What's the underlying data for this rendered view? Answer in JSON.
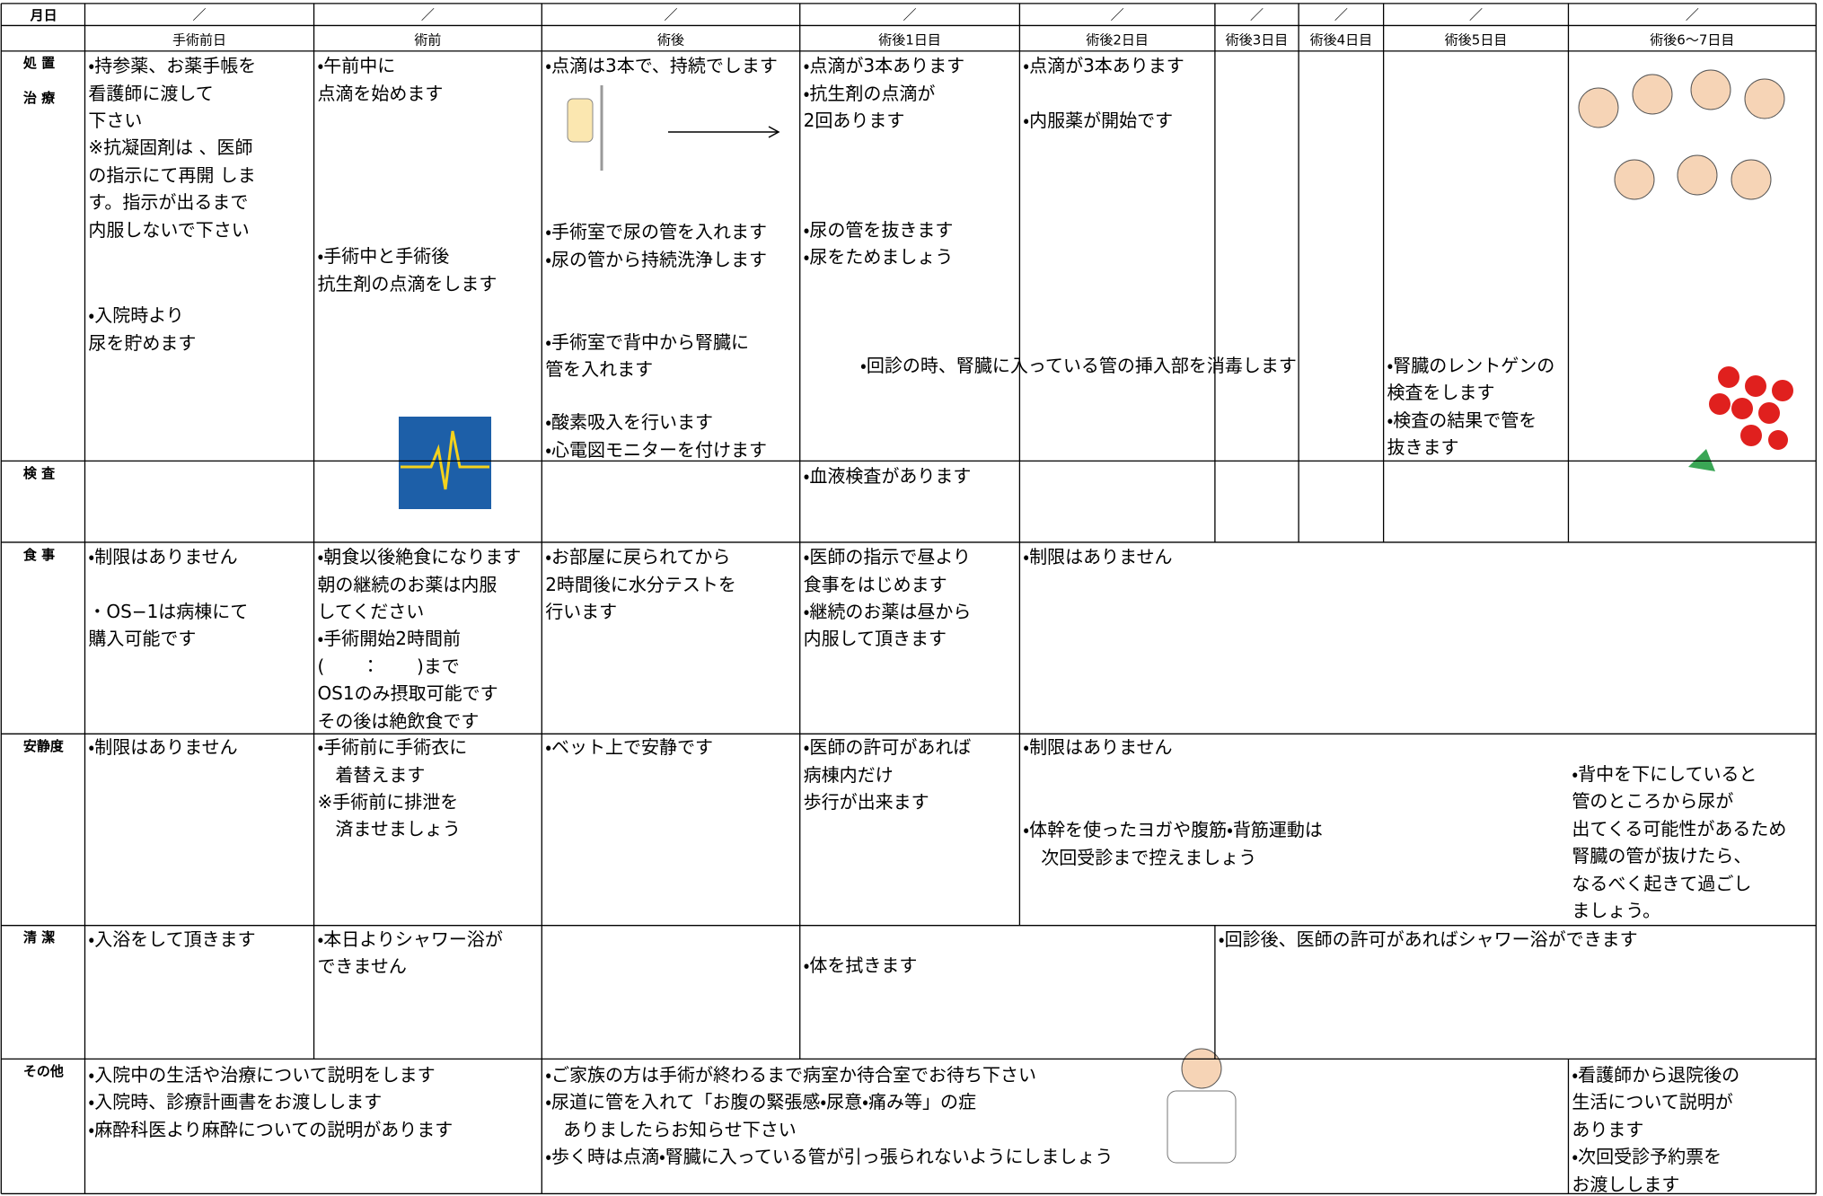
{
  "header": {
    "date_label": "月日",
    "slashes": [
      "／",
      "／",
      "／",
      "／",
      "／",
      "／",
      "／",
      "／",
      "／"
    ],
    "columns": [
      "手術前日",
      "術前",
      "術後",
      "術後1日目",
      "術後2日目",
      "術後3日目",
      "術後4日目",
      "術後5日目",
      "術後6〜7日目"
    ]
  },
  "rows": [
    {
      "label": [
        "処 置",
        "治 療"
      ],
      "blocks": [
        {
          "lines": [
            "・持参薬、お薬手帳を",
            "看護師に渡して",
            "下さい",
            "※抗凝固剤は 、医師",
            "の指示にて再開 しま",
            "す。指示が出るまで",
            "内服しないで下さい"
          ]
        },
        {
          "lines": [
            "・入院時より",
            "尿を貯めます"
          ]
        },
        {
          "lines": [
            "・午前中に",
            "点滴を始めます"
          ]
        },
        {
          "lines": [
            "・手術中と手術後",
            "抗生剤の点滴をします"
          ]
        },
        {
          "lines": [
            "・点滴は3本で、持続でします"
          ]
        },
        {
          "lines": [
            "・手術室で尿の管を入れます",
            "・尿の管から持続洗浄します"
          ]
        },
        {
          "lines": [
            "・手術室で背中から腎臓に",
            "管を入れます"
          ]
        },
        {
          "lines": [
            "・酸素吸入を行います",
            "・心電図モニターを付けます"
          ]
        },
        {
          "lines": [
            "・点滴が3本あります",
            "・抗生剤の点滴が",
            "2回あります"
          ]
        },
        {
          "lines": [
            "・尿の管を抜きます",
            "・尿をためましょう"
          ]
        },
        {
          "lines": [
            "・回診の時、腎臓に入っている管の挿入部を消毒します"
          ]
        },
        {
          "lines": [
            "・点滴が3本あります"
          ]
        },
        {
          "lines": [
            "・内服薬が開始です"
          ]
        },
        {
          "lines": [
            "・腎臓のレントゲンの",
            "検査をします",
            "・検査の結果で管を",
            "抜きます"
          ]
        }
      ]
    },
    {
      "label": [
        "検 査"
      ],
      "blocks": [
        {
          "lines": [
            "・血液検査があります"
          ]
        }
      ]
    },
    {
      "label": [
        "食 事"
      ],
      "blocks": [
        {
          "lines": [
            "・制限はありません"
          ]
        },
        {
          "lines": [
            "・OS−1は病棟にて",
            "購入可能です"
          ]
        },
        {
          "lines": [
            "・朝食以後絶食になります",
            "朝の継続のお薬は内服",
            "してください",
            "・手術開始2時間前",
            "(　　 ：　　 )まで",
            "OS1のみ摂取可能です",
            "その後は絶飲食です"
          ]
        },
        {
          "lines": [
            "・お部屋に戻られてから",
            "2時間後に水分テストを",
            "行います"
          ]
        },
        {
          "lines": [
            "・医師の指示で昼より",
            "食事をはじめます",
            "・継続のお薬は昼から",
            "内服して頂きます"
          ]
        },
        {
          "lines": [
            "・制限はありません"
          ]
        }
      ]
    },
    {
      "label": [
        "安静度"
      ],
      "blocks": [
        {
          "lines": [
            "・制限はありません"
          ]
        },
        {
          "lines": [
            "・手術前に手術衣に",
            "　着替えます",
            "※手術前に排泄を",
            "　済ませましょう"
          ]
        },
        {
          "lines": [
            "・ベット上で安静です"
          ]
        },
        {
          "lines": [
            "・医師の許可があれば",
            "病棟内だけ",
            "歩行が出来ます"
          ]
        },
        {
          "lines": [
            "・制限はありません"
          ]
        },
        {
          "lines": [
            "・体幹を使ったヨガや腹筋・背筋運動は",
            "　次回受診まで控えましょう"
          ]
        },
        {
          "lines": [
            "・背中を下にしていると",
            "管のところから尿が",
            "出てくる可能性があるため",
            "腎臓の管が抜けたら、",
            "なるべく起きて過ごし",
            "ましょう。"
          ]
        }
      ]
    },
    {
      "label": [
        "清 潔"
      ],
      "blocks": [
        {
          "lines": [
            "・入浴をして頂きます"
          ]
        },
        {
          "lines": [
            "・本日よりシャワー浴が",
            "できません"
          ]
        },
        {
          "lines": [
            "・体を拭きます"
          ]
        },
        {
          "lines": [
            "・回診後、医師の許可があればシャワー浴ができます"
          ]
        }
      ]
    },
    {
      "label": [
        "その他"
      ],
      "blocks": [
        {
          "lines": [
            "・入院中の生活や治療について説明をします",
            "・入院時、診療計画書をお渡しします",
            "・麻酔科医より麻酔についての説明があります"
          ]
        },
        {
          "lines": [
            "・ご家族の方は手術が終わるまで病室か待合室でお待ち下さい",
            "・尿道に管を入れて「お腹の緊張感・尿意・痛み等」の症",
            "　ありましたらお知らせ下さい",
            "・歩く時は点滴・腎臓に入っている管が引っ張られないようにしましょう"
          ]
        },
        {
          "lines": [
            "・看護師から退院後の",
            "生活について説明が",
            "あります",
            "・次回受診予約票を",
            "お渡しします"
          ]
        }
      ]
    }
  ]
}
